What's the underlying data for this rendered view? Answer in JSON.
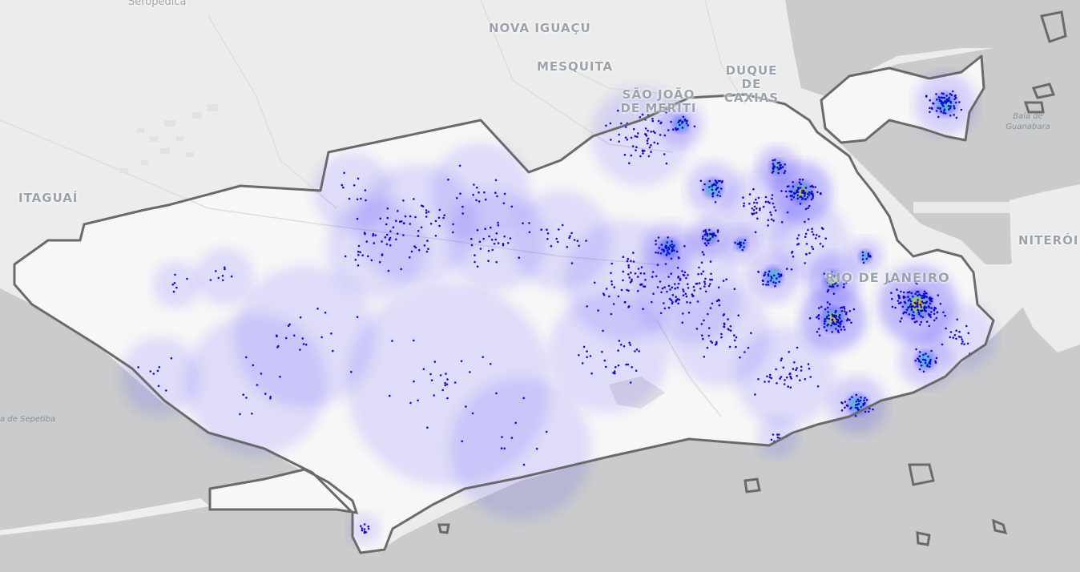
{
  "map": {
    "city_labels": {
      "seropedica": "Seropédica",
      "nova_iguacu": "NOVA IGUAÇU",
      "mesquita": "MESQUITA",
      "sao_joao_de_meriti": "SÃO JOÃO DE MERITI",
      "duque_de_caxias": "DUQUE DE CAXIAS",
      "itaguai": "ITAGUAÍ",
      "niteroi": "NITERÓI",
      "rio_de_janeiro": "RIO DE JANEIRO"
    },
    "water_labels": {
      "baia_de_guanabara": "Baía de Guanabara",
      "baia_de_sepetiba": "a de Sepetiba"
    },
    "colors": {
      "water": "#c9cbcc",
      "land": "#ececec",
      "city_fill": "#f7f7f7",
      "boundary": "#6a6a6a",
      "points": "#0b00d6",
      "heat_low": "#4a3cff",
      "heat_mid": "#22e0b0",
      "heat_high": "#ffd400",
      "heat_peak": "#ff3a00"
    }
  }
}
